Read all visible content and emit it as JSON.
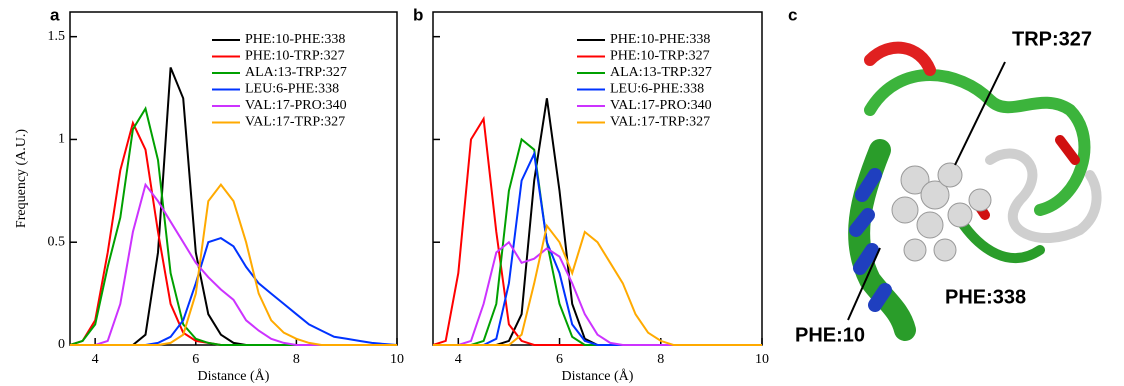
{
  "chart_data": [
    {
      "type": "line",
      "label": "a",
      "x_label": "Distance (Å)",
      "y_label": "Frequency (A.U.)",
      "xlim": [
        3.5,
        10
      ],
      "xticks": [
        4,
        6,
        8,
        10
      ],
      "ylim": [
        0,
        1.62
      ],
      "yticks": [
        0,
        0.5,
        1,
        1.5
      ],
      "ytick_labels": true,
      "legend": "top-right",
      "x": [
        3.5,
        3.75,
        4,
        4.25,
        4.5,
        4.75,
        5,
        5.25,
        5.5,
        5.75,
        6,
        6.25,
        6.5,
        6.75,
        7,
        7.25,
        7.5,
        7.75,
        8,
        8.25,
        8.5,
        8.75,
        9,
        9.25,
        9.5,
        9.75,
        10
      ],
      "series": [
        {
          "name": "PHE:10-PHE:338",
          "color": "#000000",
          "values": [
            0,
            0,
            0,
            0,
            0,
            0,
            0.05,
            0.45,
            1.35,
            1.2,
            0.45,
            0.15,
            0.05,
            0.01,
            0,
            0,
            0,
            0,
            0,
            0,
            0,
            0,
            0,
            0,
            0,
            0,
            0
          ]
        },
        {
          "name": "PHE:10-TRP:327",
          "color": "#ff0000",
          "values": [
            0,
            0.02,
            0.12,
            0.45,
            0.85,
            1.08,
            0.95,
            0.55,
            0.2,
            0.06,
            0.02,
            0.01,
            0,
            0,
            0,
            0,
            0,
            0,
            0,
            0,
            0,
            0,
            0,
            0,
            0,
            0,
            0
          ]
        },
        {
          "name": "ALA:13-TRP:327",
          "color": "#00a000",
          "values": [
            0,
            0.02,
            0.1,
            0.38,
            0.62,
            1.05,
            1.15,
            0.9,
            0.35,
            0.1,
            0.03,
            0.01,
            0,
            0,
            0,
            0,
            0,
            0,
            0,
            0,
            0,
            0,
            0,
            0,
            0,
            0,
            0
          ]
        },
        {
          "name": "LEU:6-PHE:338",
          "color": "#0033ff",
          "values": [
            0,
            0,
            0,
            0,
            0,
            0,
            0,
            0.01,
            0.04,
            0.12,
            0.3,
            0.5,
            0.52,
            0.48,
            0.38,
            0.3,
            0.25,
            0.2,
            0.15,
            0.1,
            0.07,
            0.04,
            0.03,
            0.02,
            0.01,
            0.005,
            0
          ]
        },
        {
          "name": "VAL:17-PRO:340",
          "color": "#cc33ff",
          "values": [
            0,
            0,
            0,
            0.02,
            0.2,
            0.55,
            0.78,
            0.7,
            0.6,
            0.5,
            0.4,
            0.33,
            0.27,
            0.22,
            0.12,
            0.07,
            0.03,
            0.01,
            0,
            0,
            0,
            0,
            0,
            0,
            0,
            0,
            0
          ]
        },
        {
          "name": "VAL:17-TRP:327",
          "color": "#ffaa00",
          "values": [
            0,
            0,
            0,
            0,
            0,
            0,
            0,
            0,
            0.01,
            0.05,
            0.25,
            0.7,
            0.78,
            0.7,
            0.5,
            0.25,
            0.12,
            0.06,
            0.03,
            0.01,
            0,
            0,
            0,
            0,
            0,
            0,
            0
          ]
        }
      ]
    },
    {
      "type": "line",
      "label": "b",
      "x_label": "Distance (Å)",
      "xlim": [
        3.5,
        10
      ],
      "xticks": [
        4,
        6,
        8,
        10
      ],
      "ylim": [
        0,
        1.62
      ],
      "yticks": [
        0,
        0.5,
        1,
        1.5
      ],
      "ytick_labels": false,
      "legend": "top-right",
      "x": [
        3.5,
        3.75,
        4,
        4.25,
        4.5,
        4.75,
        5,
        5.25,
        5.5,
        5.75,
        6,
        6.25,
        6.5,
        6.75,
        7,
        7.25,
        7.5,
        7.75,
        8,
        8.25,
        8.5,
        8.75,
        9,
        9.25,
        9.5,
        9.75,
        10
      ],
      "series": [
        {
          "name": "PHE:10-PHE:338",
          "color": "#000000",
          "values": [
            0,
            0,
            0,
            0,
            0,
            0,
            0.02,
            0.15,
            0.8,
            1.2,
            0.75,
            0.2,
            0.03,
            0,
            0,
            0,
            0,
            0,
            0,
            0,
            0,
            0,
            0,
            0,
            0,
            0,
            0
          ]
        },
        {
          "name": "PHE:10-TRP:327",
          "color": "#ff0000",
          "values": [
            0,
            0.02,
            0.35,
            1.0,
            1.1,
            0.55,
            0.1,
            0.02,
            0,
            0,
            0,
            0,
            0,
            0,
            0,
            0,
            0,
            0,
            0,
            0,
            0,
            0,
            0,
            0,
            0,
            0,
            0
          ]
        },
        {
          "name": "ALA:13-TRP:327",
          "color": "#00a000",
          "values": [
            0,
            0,
            0,
            0,
            0.02,
            0.2,
            0.75,
            1.0,
            0.95,
            0.5,
            0.2,
            0.04,
            0,
            0,
            0,
            0,
            0,
            0,
            0,
            0,
            0,
            0,
            0,
            0,
            0,
            0,
            0
          ]
        },
        {
          "name": "LEU:6-PHE:338",
          "color": "#0033ff",
          "values": [
            0,
            0,
            0,
            0,
            0,
            0.03,
            0.3,
            0.8,
            0.93,
            0.5,
            0.35,
            0.1,
            0.02,
            0,
            0,
            0,
            0,
            0,
            0,
            0,
            0,
            0,
            0,
            0,
            0,
            0,
            0
          ]
        },
        {
          "name": "VAL:17-PRO:340",
          "color": "#cc33ff",
          "values": [
            0,
            0,
            0,
            0.02,
            0.2,
            0.45,
            0.5,
            0.4,
            0.42,
            0.47,
            0.43,
            0.3,
            0.15,
            0.05,
            0.01,
            0,
            0,
            0,
            0,
            0,
            0,
            0,
            0,
            0,
            0,
            0,
            0
          ]
        },
        {
          "name": "VAL:17-TRP:327",
          "color": "#ffaa00",
          "values": [
            0,
            0,
            0,
            0,
            0,
            0,
            0,
            0.05,
            0.3,
            0.58,
            0.5,
            0.35,
            0.55,
            0.5,
            0.4,
            0.3,
            0.15,
            0.06,
            0.02,
            0,
            0,
            0,
            0,
            0,
            0,
            0,
            0
          ]
        }
      ]
    }
  ],
  "structure_image": {
    "label": "c",
    "annotations": [
      "TRP:327",
      "PHE:338",
      "PHE:10"
    ]
  }
}
